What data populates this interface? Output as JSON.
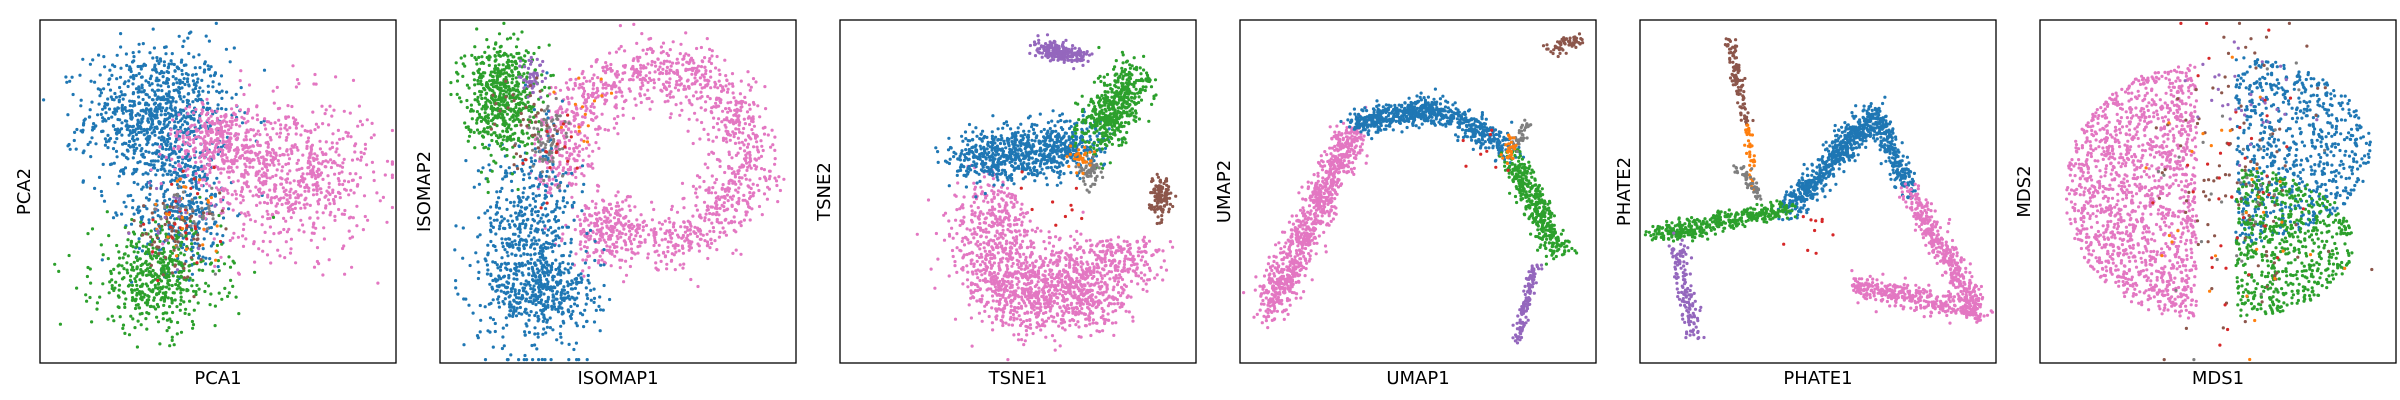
{
  "colors": {
    "blue": "#1f77b4",
    "orange": "#ff7f0e",
    "green": "#2ca02c",
    "red": "#d62728",
    "purple": "#9467bd",
    "brown": "#8c564b",
    "pink": "#e377c2",
    "gray": "#7f7f7f"
  },
  "chart_data": [
    {
      "type": "scatter",
      "xlabel": "PCA1",
      "ylabel": "PCA2",
      "xlim": [
        0,
        1
      ],
      "ylim": [
        0,
        1
      ],
      "ticks": "none",
      "grid": false,
      "clusters": [
        {
          "color": "blue",
          "n": 900,
          "cx": 0.33,
          "cy": 0.72,
          "sx": 0.1,
          "sy": 0.1,
          "spread": 0.9
        },
        {
          "color": "blue",
          "n": 350,
          "cx": 0.4,
          "cy": 0.45,
          "sx": 0.07,
          "sy": 0.09
        },
        {
          "color": "pink",
          "n": 700,
          "cx": 0.7,
          "cy": 0.55,
          "sx": 0.12,
          "sy": 0.11
        },
        {
          "color": "pink",
          "n": 300,
          "cx": 0.5,
          "cy": 0.65,
          "sx": 0.07,
          "sy": 0.05
        },
        {
          "color": "green",
          "n": 500,
          "cx": 0.33,
          "cy": 0.25,
          "sx": 0.09,
          "sy": 0.08
        },
        {
          "color": "brown",
          "n": 70,
          "cx": 0.38,
          "cy": 0.38,
          "sx": 0.06,
          "sy": 0.06
        },
        {
          "color": "red",
          "n": 25,
          "cx": 0.38,
          "cy": 0.4,
          "sx": 0.06,
          "sy": 0.06
        },
        {
          "color": "orange",
          "n": 25,
          "cx": 0.4,
          "cy": 0.42,
          "sx": 0.06,
          "sy": 0.06
        },
        {
          "color": "purple",
          "n": 20,
          "cx": 0.4,
          "cy": 0.44,
          "sx": 0.06,
          "sy": 0.06
        },
        {
          "color": "gray",
          "n": 30,
          "cx": 0.41,
          "cy": 0.43,
          "sx": 0.05,
          "sy": 0.05
        }
      ]
    },
    {
      "type": "scatter",
      "xlabel": "ISOMAP1",
      "ylabel": "ISOMAP2",
      "xlim": [
        0,
        1
      ],
      "ylim": [
        0,
        1
      ],
      "ticks": "none",
      "grid": false,
      "clusters": [
        {
          "color": "pink",
          "type": "arc",
          "n": 1200,
          "cx": 0.6,
          "cy": 0.6,
          "r": 0.26,
          "a0": -90,
          "a1": 200,
          "w": 0.045
        },
        {
          "color": "pink",
          "n": 300,
          "cx": 0.48,
          "cy": 0.38,
          "sx": 0.06,
          "sy": 0.05
        },
        {
          "color": "blue",
          "n": 600,
          "cx": 0.25,
          "cy": 0.35,
          "sx": 0.07,
          "sy": 0.15
        },
        {
          "color": "blue",
          "n": 300,
          "cx": 0.3,
          "cy": 0.2,
          "sx": 0.08,
          "sy": 0.06
        },
        {
          "color": "green",
          "n": 600,
          "cx": 0.17,
          "cy": 0.78,
          "sx": 0.05,
          "sy": 0.08
        },
        {
          "color": "gray",
          "n": 70,
          "cx": 0.3,
          "cy": 0.65,
          "sx": 0.03,
          "sy": 0.06
        },
        {
          "color": "purple",
          "n": 50,
          "cx": 0.26,
          "cy": 0.83,
          "sx": 0.02,
          "sy": 0.03
        },
        {
          "color": "brown",
          "n": 40,
          "cx": 0.25,
          "cy": 0.7,
          "sx": 0.05,
          "sy": 0.07
        },
        {
          "color": "orange",
          "n": 15,
          "cx": 0.4,
          "cy": 0.72,
          "sx": 0.04,
          "sy": 0.06
        },
        {
          "color": "red",
          "n": 15,
          "cx": 0.3,
          "cy": 0.6,
          "sx": 0.05,
          "sy": 0.07
        }
      ]
    },
    {
      "type": "scatter",
      "xlabel": "TSNE1",
      "ylabel": "TSNE2",
      "xlim": [
        0,
        1
      ],
      "ylim": [
        0,
        1
      ],
      "ticks": "none",
      "grid": false,
      "clusters": [
        {
          "color": "pink",
          "type": "arc",
          "n": 1200,
          "cx": 0.6,
          "cy": 0.36,
          "r": 0.2,
          "a0": 0,
          "a1": -230,
          "w": 0.06
        },
        {
          "color": "pink",
          "n": 400,
          "cx": 0.6,
          "cy": 0.25,
          "sx": 0.09,
          "sy": 0.06
        },
        {
          "color": "blue",
          "type": "line",
          "n": 800,
          "x0": 0.35,
          "y0": 0.6,
          "x1": 0.7,
          "y1": 0.64,
          "w": 0.04
        },
        {
          "color": "green",
          "type": "line",
          "n": 500,
          "x0": 0.72,
          "y0": 0.66,
          "x1": 0.82,
          "y1": 0.84,
          "w": 0.035
        },
        {
          "color": "purple",
          "type": "line",
          "n": 200,
          "x0": 0.56,
          "y0": 0.92,
          "x1": 0.68,
          "y1": 0.89,
          "w": 0.015
        },
        {
          "color": "brown",
          "n": 120,
          "cx": 0.9,
          "cy": 0.48,
          "sx": 0.015,
          "sy": 0.03
        },
        {
          "color": "gray",
          "n": 60,
          "cx": 0.7,
          "cy": 0.56,
          "sx": 0.015,
          "sy": 0.02
        },
        {
          "color": "orange",
          "n": 30,
          "cx": 0.68,
          "cy": 0.6,
          "sx": 0.015,
          "sy": 0.02
        },
        {
          "color": "red",
          "n": 10,
          "cx": 0.6,
          "cy": 0.5,
          "sx": 0.06,
          "sy": 0.08
        }
      ]
    },
    {
      "type": "scatter",
      "xlabel": "UMAP1",
      "ylabel": "UMAP2",
      "xlim": [
        0,
        1
      ],
      "ylim": [
        0,
        1
      ],
      "ticks": "none",
      "grid": false,
      "clusters": [
        {
          "color": "pink",
          "type": "line",
          "n": 900,
          "x0": 0.08,
          "y0": 0.15,
          "x1": 0.32,
          "y1": 0.68,
          "w": 0.025
        },
        {
          "color": "blue",
          "type": "line",
          "n": 450,
          "x0": 0.32,
          "y0": 0.7,
          "x1": 0.55,
          "y1": 0.74,
          "w": 0.018
        },
        {
          "color": "blue",
          "type": "line",
          "n": 300,
          "x0": 0.55,
          "y0": 0.74,
          "x1": 0.76,
          "y1": 0.62,
          "w": 0.02
        },
        {
          "color": "green",
          "type": "line",
          "n": 400,
          "x0": 0.76,
          "y0": 0.6,
          "x1": 0.9,
          "y1": 0.32,
          "w": 0.02
        },
        {
          "color": "purple",
          "type": "line",
          "n": 120,
          "x0": 0.83,
          "y0": 0.29,
          "x1": 0.78,
          "y1": 0.06,
          "w": 0.008
        },
        {
          "color": "brown",
          "type": "line",
          "n": 60,
          "x0": 0.87,
          "y0": 0.92,
          "x1": 0.96,
          "y1": 0.94,
          "w": 0.01
        },
        {
          "color": "gray",
          "type": "line",
          "n": 40,
          "x0": 0.77,
          "y0": 0.62,
          "x1": 0.81,
          "y1": 0.71,
          "w": 0.008
        },
        {
          "color": "orange",
          "n": 30,
          "cx": 0.76,
          "cy": 0.62,
          "sx": 0.01,
          "sy": 0.02
        },
        {
          "color": "red",
          "n": 8,
          "cx": 0.7,
          "cy": 0.62,
          "sx": 0.05,
          "sy": 0.05
        }
      ]
    },
    {
      "type": "scatter",
      "xlabel": "PHATE1",
      "ylabel": "PHATE2",
      "xlim": [
        0,
        1
      ],
      "ylim": [
        0,
        1
      ],
      "ticks": "none",
      "grid": false,
      "clusters": [
        {
          "color": "blue",
          "type": "line",
          "n": 600,
          "x0": 0.42,
          "y0": 0.45,
          "x1": 0.66,
          "y1": 0.73,
          "w": 0.02
        },
        {
          "color": "blue",
          "type": "line",
          "n": 250,
          "x0": 0.66,
          "y0": 0.73,
          "x1": 0.76,
          "y1": 0.5,
          "w": 0.015
        },
        {
          "color": "pink",
          "type": "line",
          "n": 400,
          "x0": 0.76,
          "y0": 0.5,
          "x1": 0.95,
          "y1": 0.15,
          "w": 0.018
        },
        {
          "color": "pink",
          "type": "line",
          "n": 350,
          "x0": 0.6,
          "y0": 0.23,
          "x1": 0.95,
          "y1": 0.15,
          "w": 0.018
        },
        {
          "color": "green",
          "type": "line",
          "n": 400,
          "x0": 0.04,
          "y0": 0.37,
          "x1": 0.42,
          "y1": 0.45,
          "w": 0.015
        },
        {
          "color": "purple",
          "type": "line",
          "n": 150,
          "x0": 0.1,
          "y0": 0.35,
          "x1": 0.15,
          "y1": 0.08,
          "w": 0.012
        },
        {
          "color": "brown",
          "type": "line",
          "n": 100,
          "x0": 0.25,
          "y0": 0.95,
          "x1": 0.3,
          "y1": 0.7,
          "w": 0.008
        },
        {
          "color": "orange",
          "type": "line",
          "n": 40,
          "x0": 0.3,
          "y0": 0.7,
          "x1": 0.32,
          "y1": 0.5,
          "w": 0.006
        },
        {
          "color": "gray",
          "type": "line",
          "n": 50,
          "x0": 0.27,
          "y0": 0.58,
          "x1": 0.34,
          "y1": 0.48,
          "w": 0.008
        },
        {
          "color": "red",
          "n": 10,
          "cx": 0.5,
          "cy": 0.4,
          "sx": 0.08,
          "sy": 0.05
        }
      ]
    },
    {
      "type": "scatter",
      "xlabel": "MDS1",
      "ylabel": "MDS2",
      "xlim": [
        0,
        1
      ],
      "ylim": [
        0,
        1
      ],
      "ticks": "none",
      "grid": false,
      "clusters": [
        {
          "color": "pink",
          "type": "halfdisk",
          "n": 1400,
          "cx": 0.44,
          "cy": 0.5,
          "rx": 0.37,
          "ry": 0.37,
          "side": -1
        },
        {
          "color": "blue",
          "type": "halfdisk",
          "n": 700,
          "cx": 0.55,
          "cy": 0.62,
          "rx": 0.38,
          "ry": 0.27,
          "side": 1
        },
        {
          "color": "green",
          "type": "halfdisk",
          "n": 600,
          "cx": 0.55,
          "cy": 0.35,
          "rx": 0.33,
          "ry": 0.22,
          "side": 1
        },
        {
          "color": "brown",
          "n": 100,
          "cx": 0.55,
          "cy": 0.5,
          "sx": 0.12,
          "sy": 0.22
        },
        {
          "color": "red",
          "n": 40,
          "cx": 0.55,
          "cy": 0.5,
          "sx": 0.12,
          "sy": 0.22
        },
        {
          "color": "orange",
          "n": 30,
          "cx": 0.55,
          "cy": 0.5,
          "sx": 0.12,
          "sy": 0.22
        },
        {
          "color": "purple",
          "n": 30,
          "cx": 0.55,
          "cy": 0.75,
          "sx": 0.1,
          "sy": 0.08
        },
        {
          "color": "gray",
          "n": 30,
          "cx": 0.55,
          "cy": 0.5,
          "sx": 0.12,
          "sy": 0.22
        }
      ]
    }
  ]
}
